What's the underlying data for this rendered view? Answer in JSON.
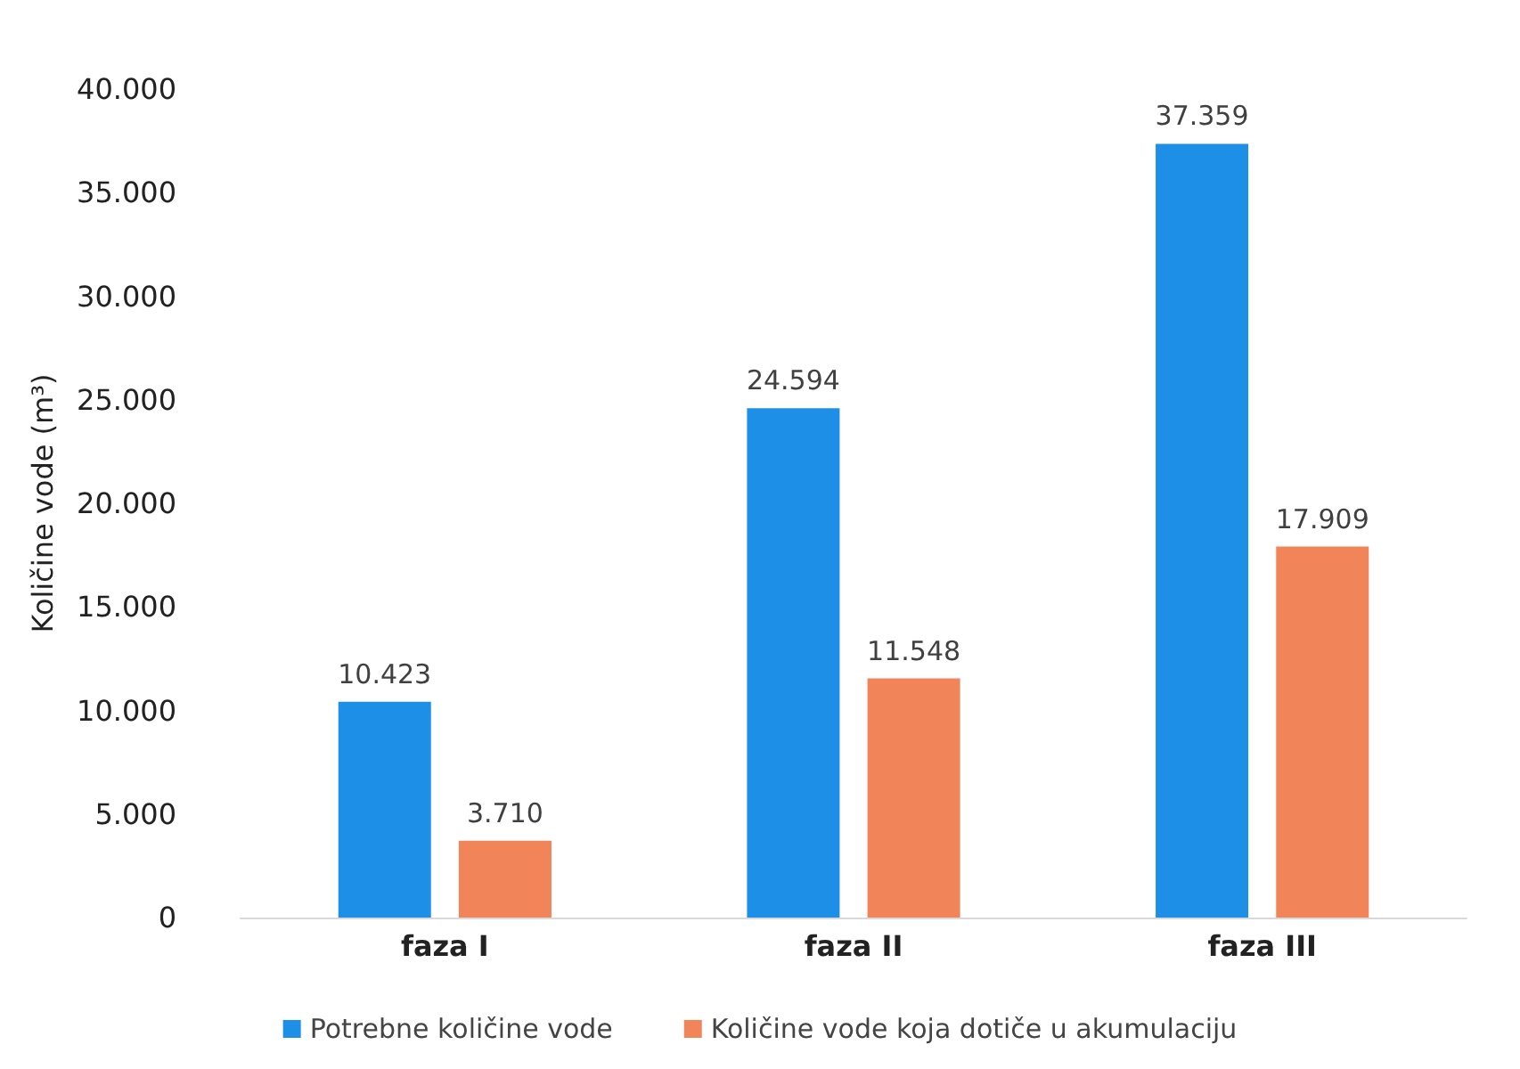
{
  "chart_data": {
    "type": "bar",
    "ylabel": "Količine vode (m³)",
    "categories": [
      "faza I",
      "faza II",
      "faza III"
    ],
    "series": [
      {
        "name": "Potrebne količine vode",
        "color": "#1e8fe6",
        "values": [
          10423,
          24594,
          37359
        ],
        "value_labels": [
          "10.423",
          "24.594",
          "37.359"
        ]
      },
      {
        "name": "Količine vode koja dotiče u akumulaciju",
        "color": "#f2845a",
        "values": [
          3710,
          11548,
          17909
        ],
        "value_labels": [
          "3.710",
          "11.548",
          "17.909"
        ]
      }
    ],
    "ylim": [
      0,
      40000
    ],
    "yticks": [
      {
        "value": 0,
        "label": "0"
      },
      {
        "value": 5000,
        "label": "5.000"
      },
      {
        "value": 10000,
        "label": "10.000"
      },
      {
        "value": 15000,
        "label": "15.000"
      },
      {
        "value": 20000,
        "label": "20.000"
      },
      {
        "value": 25000,
        "label": "25.000"
      },
      {
        "value": 30000,
        "label": "30.000"
      },
      {
        "value": 35000,
        "label": "35.000"
      },
      {
        "value": 40000,
        "label": "40.000"
      }
    ],
    "grid": false,
    "legend": "bottom"
  }
}
